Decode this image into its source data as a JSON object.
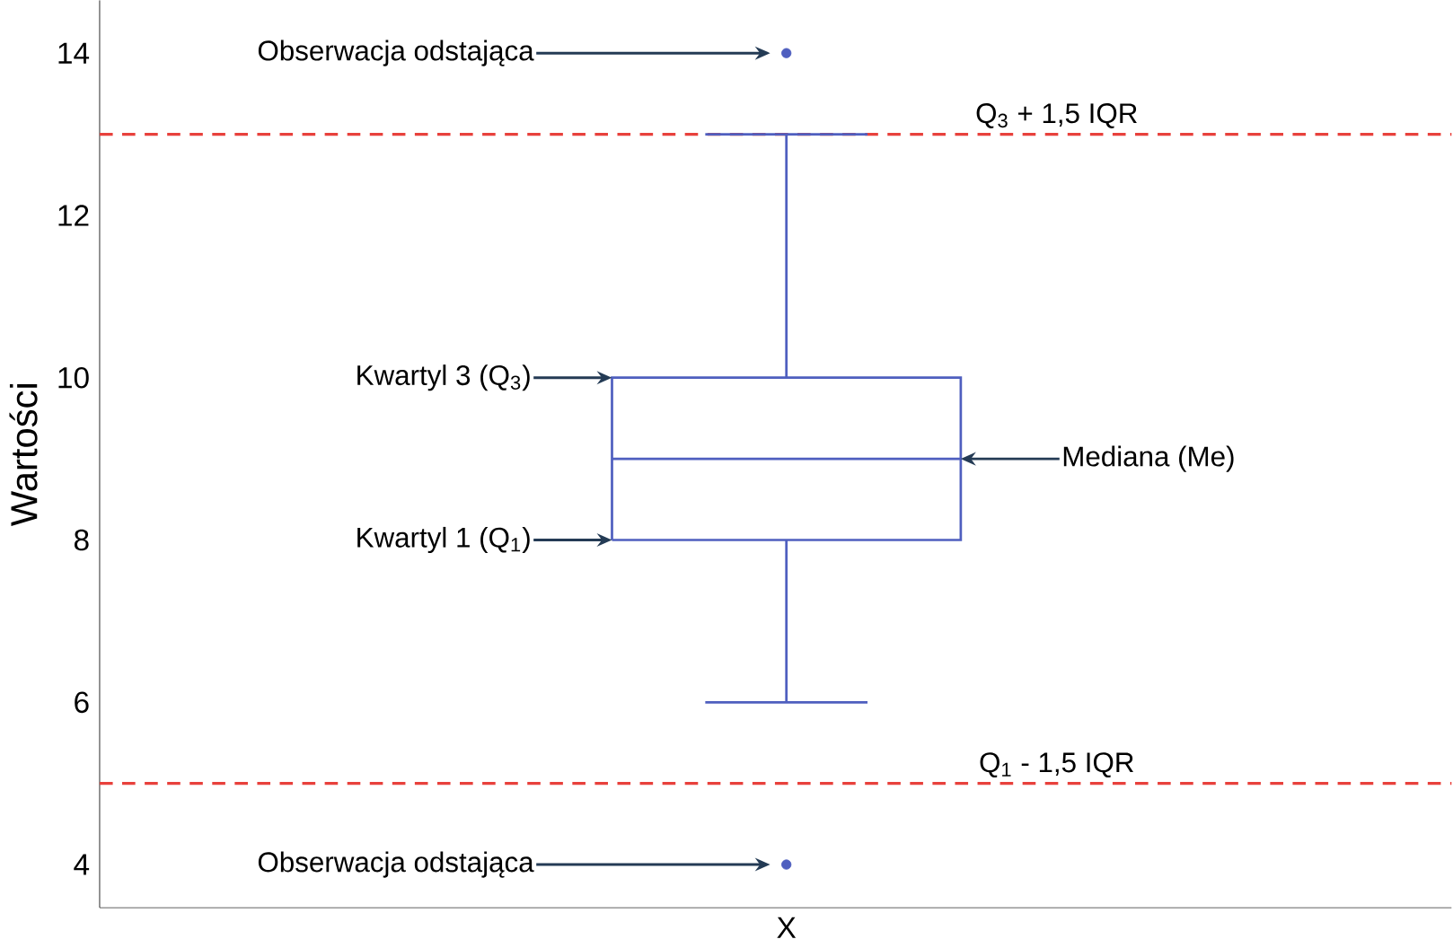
{
  "chart_data": {
    "type": "box",
    "ylabel": "Wartości",
    "categories": [
      "X"
    ],
    "series": [
      {
        "color": "#4f5fbf",
        "boxes": [
          {
            "low": 6,
            "q1": 8,
            "median": 9,
            "q3": 10,
            "high": 13,
            "outliers": [
              14,
              4
            ]
          }
        ]
      }
    ],
    "ylim": [
      3.47,
      14.65
    ],
    "yticks": [
      4,
      6,
      8,
      10,
      12,
      14
    ],
    "ref_lines": [
      {
        "axis": "y",
        "value": 13,
        "label": "Q$_{3}$ + 1,5 IQR",
        "color": "#e8413c",
        "line_style": "dashed"
      },
      {
        "axis": "y",
        "value": 5,
        "label": "Q$_{1}$ - 1,5 IQR",
        "color": "#e8413c",
        "line_style": "dashed"
      }
    ],
    "annotations": [
      "Obserwacja odstająca",
      "Kwartyl 3 (Q$_{3}$)",
      "Mediana (Me)",
      "Kwartyl 1 (Q$_{1}$)",
      "Obserwacja odstająca"
    ]
  }
}
